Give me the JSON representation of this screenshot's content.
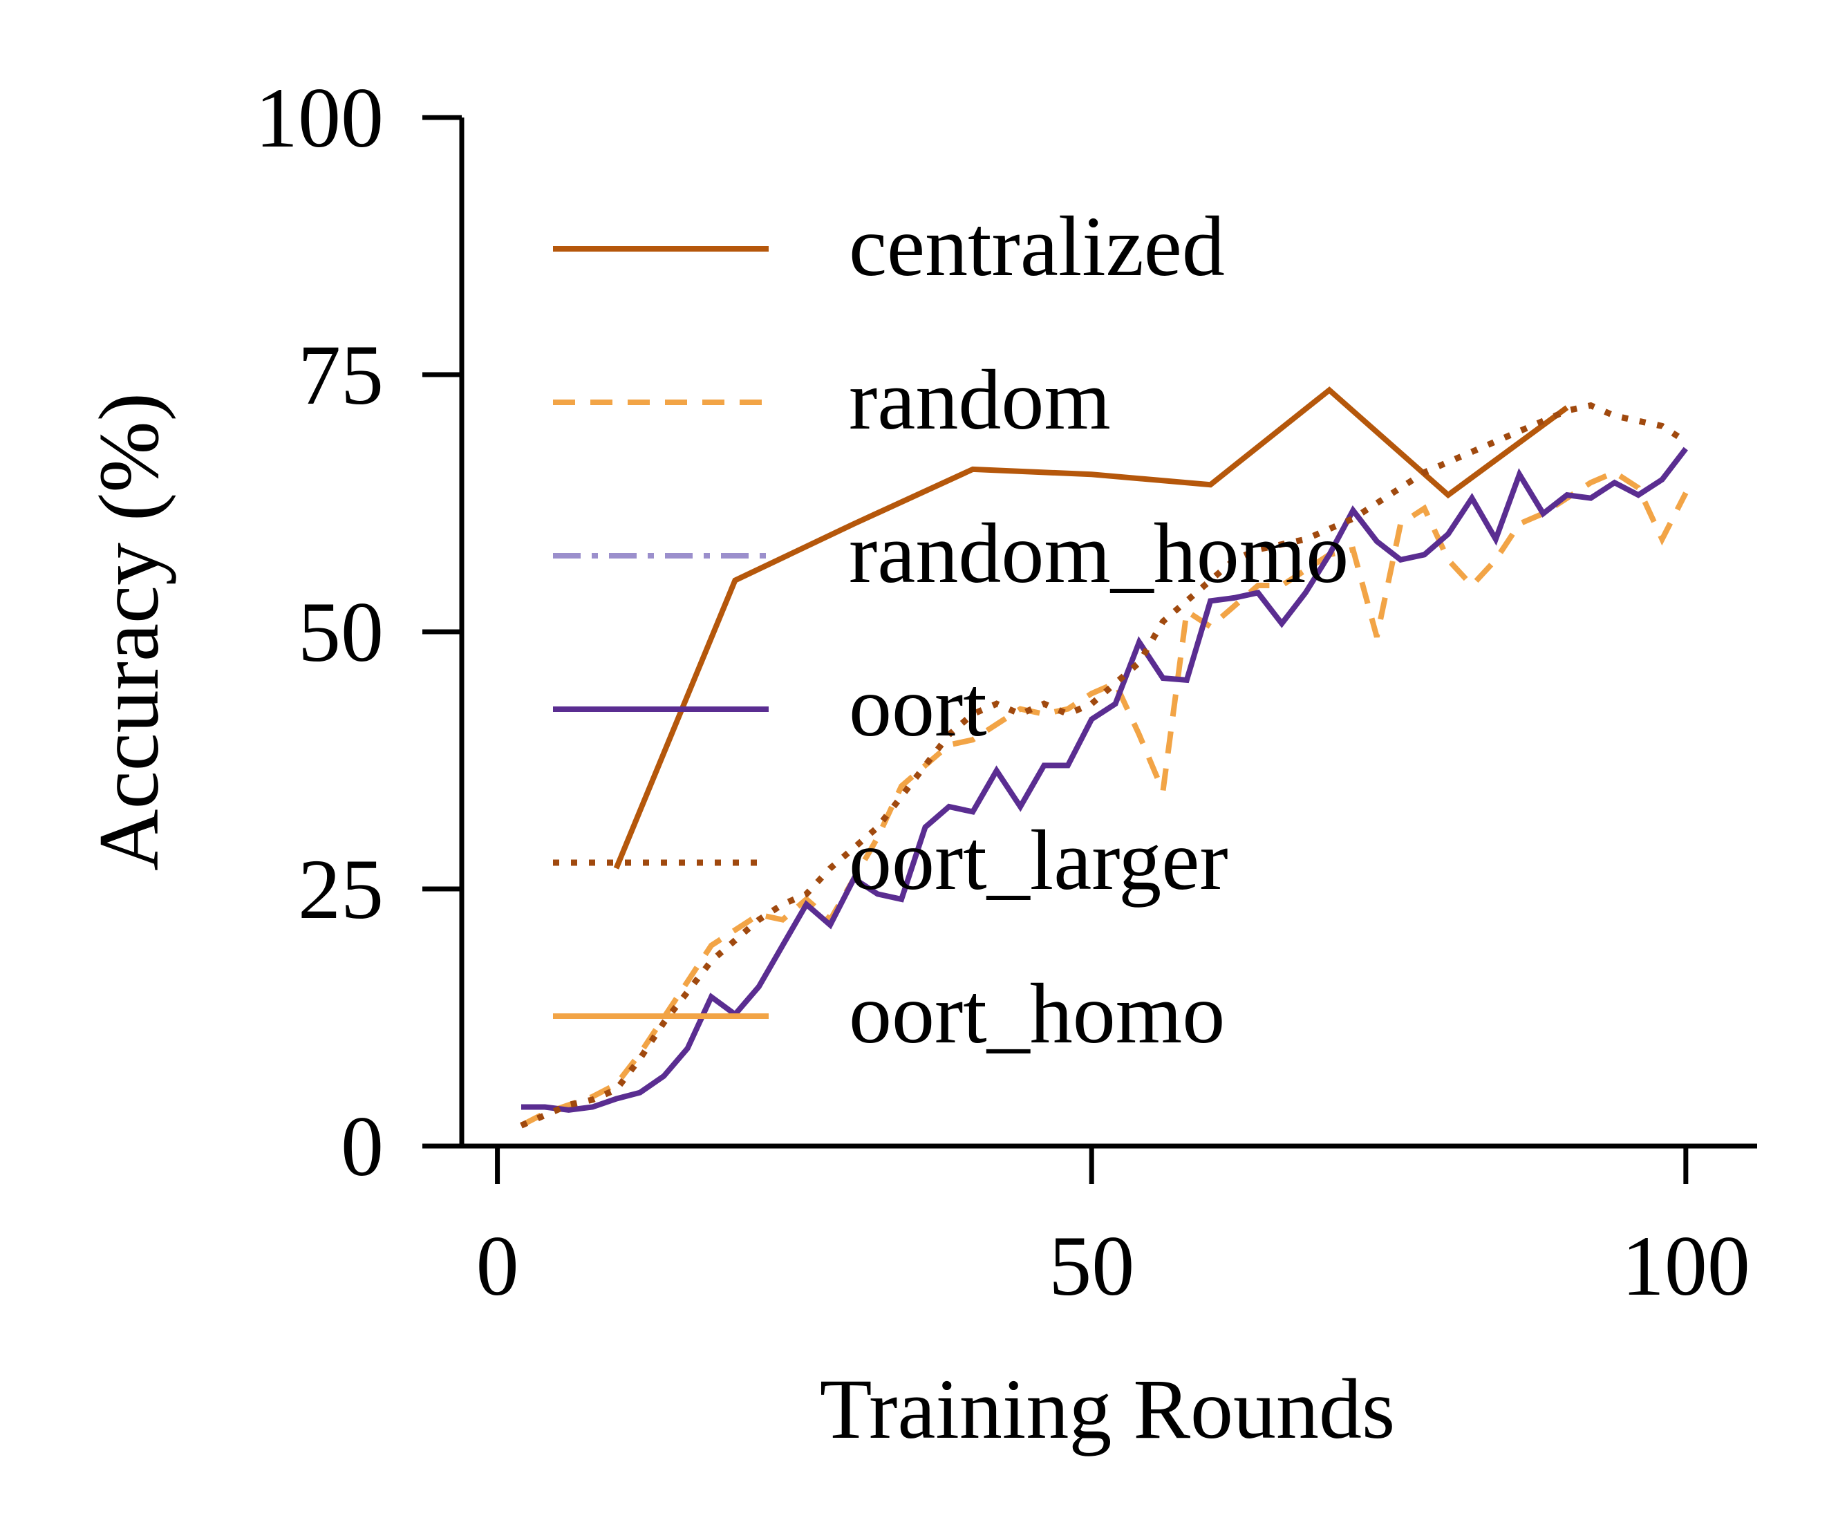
{
  "chart_data": {
    "type": "line",
    "xlabel": "Training Rounds",
    "ylabel": "Accuracy (%)",
    "xlim": [
      -3,
      106
    ],
    "ylim": [
      0,
      100
    ],
    "xticks": [
      0,
      50,
      100
    ],
    "yticks": [
      0,
      25,
      50,
      75,
      100
    ],
    "grid": false,
    "legend_position": "upper-left",
    "series": [
      {
        "name": "centralized",
        "color": "#b5570b",
        "dash": "solid",
        "points": [
          [
            10,
            27
          ],
          [
            20,
            55
          ],
          [
            30,
            60.5
          ],
          [
            40,
            65.8
          ],
          [
            50,
            65.3
          ],
          [
            60,
            64.3
          ],
          [
            70,
            73.5
          ],
          [
            80,
            63.3
          ],
          [
            90,
            71.8
          ]
        ]
      },
      {
        "name": "random",
        "color": "#f2a446",
        "dash": "dashed",
        "points": [
          [
            2,
            2
          ],
          [
            4,
            3.2
          ],
          [
            6,
            4
          ],
          [
            8,
            4.8
          ],
          [
            10,
            6
          ],
          [
            12,
            9
          ],
          [
            14,
            12.5
          ],
          [
            16,
            16
          ],
          [
            18,
            19.5
          ],
          [
            20,
            21
          ],
          [
            22,
            22.5
          ],
          [
            24,
            22
          ],
          [
            26,
            24
          ],
          [
            28,
            22
          ],
          [
            30,
            26
          ],
          [
            32,
            30
          ],
          [
            34,
            35
          ],
          [
            36,
            37
          ],
          [
            38,
            39
          ],
          [
            40,
            39.5
          ],
          [
            42,
            41
          ],
          [
            44,
            42.5
          ],
          [
            46,
            42
          ],
          [
            48,
            42.5
          ],
          [
            50,
            44
          ],
          [
            52,
            45
          ],
          [
            54,
            40
          ],
          [
            56,
            34.5
          ],
          [
            58,
            52
          ],
          [
            60,
            50.5
          ],
          [
            62,
            52.5
          ],
          [
            64,
            54.5
          ],
          [
            66,
            54.5
          ],
          [
            68,
            56
          ],
          [
            70,
            57.5
          ],
          [
            72,
            58
          ],
          [
            74,
            49.5
          ],
          [
            76,
            60.5
          ],
          [
            78,
            62
          ],
          [
            80,
            57
          ],
          [
            82,
            54.5
          ],
          [
            84,
            57
          ],
          [
            86,
            60.5
          ],
          [
            88,
            61.5
          ],
          [
            90,
            63
          ],
          [
            92,
            64.5
          ],
          [
            94,
            65.5
          ],
          [
            96,
            64
          ],
          [
            98,
            59
          ],
          [
            100,
            63.5
          ]
        ]
      },
      {
        "name": "random_homo",
        "color": "#9b8fcc",
        "dash": "dashdot",
        "points": []
      },
      {
        "name": "oort",
        "color": "#5a2d91",
        "dash": "solid",
        "points": [
          [
            2,
            3.8
          ],
          [
            4,
            3.8
          ],
          [
            6,
            3.5
          ],
          [
            8,
            3.8
          ],
          [
            10,
            4.6
          ],
          [
            12,
            5.2
          ],
          [
            14,
            6.8
          ],
          [
            16,
            9.5
          ],
          [
            18,
            14.5
          ],
          [
            20,
            12.8
          ],
          [
            22,
            15.5
          ],
          [
            24,
            19.5
          ],
          [
            26,
            23.5
          ],
          [
            28,
            21.5
          ],
          [
            30,
            26
          ],
          [
            32,
            24.5
          ],
          [
            34,
            24
          ],
          [
            36,
            31
          ],
          [
            38,
            33
          ],
          [
            40,
            32.5
          ],
          [
            42,
            36.5
          ],
          [
            44,
            33
          ],
          [
            46,
            37
          ],
          [
            48,
            37
          ],
          [
            50,
            41.5
          ],
          [
            52,
            43
          ],
          [
            54,
            49
          ],
          [
            56,
            45.5
          ],
          [
            58,
            45.3
          ],
          [
            60,
            53
          ],
          [
            62,
            53.3
          ],
          [
            64,
            53.8
          ],
          [
            66,
            50.8
          ],
          [
            68,
            53.8
          ],
          [
            70,
            57.5
          ],
          [
            72,
            61.8
          ],
          [
            74,
            58.8
          ],
          [
            76,
            57
          ],
          [
            78,
            57.5
          ],
          [
            80,
            59.5
          ],
          [
            82,
            63
          ],
          [
            84,
            59
          ],
          [
            86,
            65.3
          ],
          [
            88,
            61.5
          ],
          [
            90,
            63.3
          ],
          [
            92,
            63
          ],
          [
            94,
            64.5
          ],
          [
            96,
            63.3
          ],
          [
            98,
            64.8
          ],
          [
            100,
            67.8
          ]
        ]
      },
      {
        "name": "oort_larger",
        "color": "#a0490e",
        "dash": "dotted",
        "points": [
          [
            2,
            2
          ],
          [
            4,
            3
          ],
          [
            6,
            4
          ],
          [
            8,
            4.5
          ],
          [
            10,
            5.5
          ],
          [
            12,
            8.5
          ],
          [
            14,
            12
          ],
          [
            16,
            15
          ],
          [
            18,
            18
          ],
          [
            20,
            20
          ],
          [
            22,
            22
          ],
          [
            24,
            23.5
          ],
          [
            26,
            24.5
          ],
          [
            28,
            27
          ],
          [
            30,
            29
          ],
          [
            32,
            31
          ],
          [
            34,
            34
          ],
          [
            36,
            37
          ],
          [
            38,
            40
          ],
          [
            40,
            42
          ],
          [
            42,
            43
          ],
          [
            44,
            42
          ],
          [
            46,
            43
          ],
          [
            48,
            42
          ],
          [
            50,
            43
          ],
          [
            52,
            45
          ],
          [
            54,
            47
          ],
          [
            56,
            51
          ],
          [
            58,
            53
          ],
          [
            60,
            55
          ],
          [
            62,
            57
          ],
          [
            64,
            58
          ],
          [
            66,
            58.5
          ],
          [
            68,
            59
          ],
          [
            70,
            60
          ],
          [
            72,
            61
          ],
          [
            74,
            62.5
          ],
          [
            76,
            64
          ],
          [
            78,
            65.5
          ],
          [
            80,
            66.5
          ],
          [
            82,
            67.5
          ],
          [
            84,
            68.5
          ],
          [
            86,
            69.5
          ],
          [
            88,
            70.5
          ],
          [
            90,
            71.5
          ],
          [
            92,
            72
          ],
          [
            94,
            71
          ],
          [
            96,
            70.5
          ],
          [
            98,
            70
          ],
          [
            100,
            68.5
          ]
        ]
      },
      {
        "name": "oort_homo",
        "color": "#f2a446",
        "dash": "solid",
        "points": []
      }
    ]
  }
}
